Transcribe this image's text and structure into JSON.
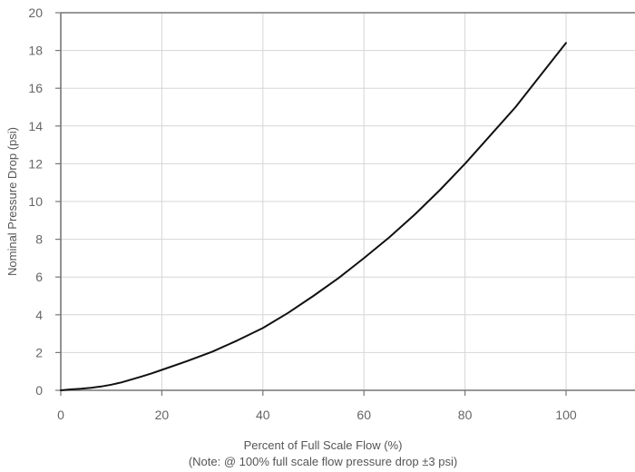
{
  "chart_data": {
    "type": "line",
    "title": "",
    "xlabel": "Percent of Full Scale Flow (%)",
    "xlabel_note": "(Note: @ 100% full scale flow pressure drop ±3 psi)",
    "ylabel": "Nominal Pressure Drop (psi)",
    "xlim": [
      0,
      115
    ],
    "ylim": [
      0,
      20
    ],
    "x_ticks": [
      0,
      20,
      40,
      60,
      80,
      100
    ],
    "y_ticks": [
      0,
      2,
      4,
      6,
      8,
      10,
      12,
      14,
      16,
      18,
      20
    ],
    "grid": true,
    "colors": {
      "line": "#111111",
      "grid": "#d6d6d6",
      "axis": "#777777",
      "text": "#666666"
    },
    "series": [
      {
        "x": [
          0,
          2,
          4,
          6,
          8,
          10,
          12,
          14,
          16,
          18,
          20,
          25,
          30,
          35,
          40,
          45,
          50,
          55,
          60,
          65,
          70,
          75,
          80,
          85,
          90,
          95,
          100
        ],
        "y": [
          0.0,
          0.05,
          0.08,
          0.13,
          0.2,
          0.3,
          0.42,
          0.57,
          0.73,
          0.9,
          1.08,
          1.55,
          2.05,
          2.65,
          3.3,
          4.1,
          5.0,
          5.95,
          7.0,
          8.1,
          9.3,
          10.6,
          12.0,
          13.5,
          15.0,
          16.7,
          18.4
        ]
      }
    ]
  }
}
